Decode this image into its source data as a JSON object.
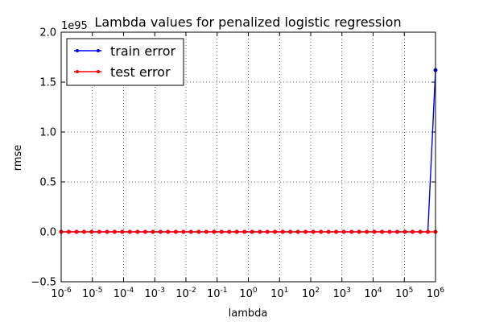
{
  "chart_data": {
    "type": "line",
    "title": "Lambda values for penalized logistic regression",
    "xlabel": "lambda",
    "ylabel": "rmse",
    "x_scale": "log",
    "xlim": [
      1e-06,
      1000000.0
    ],
    "ylim": [
      -0.5,
      2.0
    ],
    "y_offset_text": "1e95",
    "y_ticks": [
      -0.5,
      0.0,
      0.5,
      1.0,
      1.5,
      2.0
    ],
    "y_tick_labels": [
      "−0.5",
      "0.0",
      "0.5",
      "1.0",
      "1.5",
      "2.0"
    ],
    "x_tick_exponents": [
      -6,
      -5,
      -4,
      -3,
      -2,
      -1,
      0,
      1,
      2,
      3,
      4,
      5,
      6
    ],
    "x_tick_base": "10",
    "grid": true,
    "legend_position": "top-left",
    "lambdas_log10": {
      "start": -6,
      "stop": 6,
      "count": 50
    },
    "series": [
      {
        "name": "train error",
        "color": "#0000ff",
        "values_note_zero_except_last": true,
        "last_value": 1.62
      },
      {
        "name": "test error",
        "color": "#ff0000",
        "values_note_zero_except_last": false,
        "last_value": 0.0
      }
    ]
  }
}
